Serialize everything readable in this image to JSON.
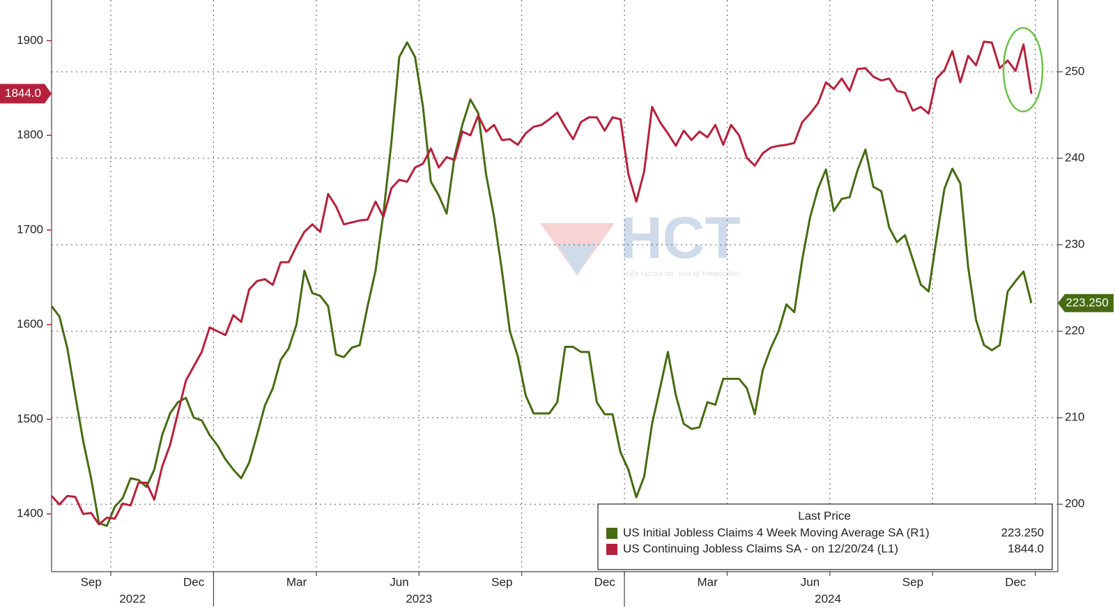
{
  "chart_data": {
    "type": "line",
    "watermark": {
      "logo": "HCT",
      "tagline": "KIẾN TẠO GIÁ TRỊ - CHIA SẺ THÀNH CÔNG"
    },
    "categories": [
      null,
      null,
      null,
      null,
      null,
      "Sep",
      null,
      null,
      null,
      null,
      null,
      null,
      null,
      null,
      null,
      null,
      null,
      null,
      "Dec",
      null,
      null,
      null,
      null,
      null,
      null,
      null,
      null,
      null,
      null,
      null,
      null,
      "Mar",
      null,
      null,
      null,
      null,
      null,
      null,
      null,
      null,
      null,
      null,
      null,
      null,
      "Jun",
      null,
      null,
      null,
      null,
      null,
      null,
      null,
      null,
      null,
      null,
      null,
      null,
      "Sep",
      null,
      null,
      null,
      null,
      null,
      null,
      null,
      null,
      null,
      null,
      null,
      null,
      "Dec",
      null,
      null,
      null,
      null,
      null,
      null,
      null,
      null,
      null,
      null,
      null,
      null,
      "Mar",
      null,
      null,
      null,
      null,
      null,
      null,
      null,
      null,
      null,
      null,
      null,
      null,
      "Jun",
      null,
      null,
      null,
      null,
      null,
      null,
      null,
      null,
      null,
      null,
      null,
      null,
      "Sep",
      null,
      null,
      null,
      null,
      null,
      null,
      null,
      null,
      null,
      null,
      null,
      null,
      "Dec",
      null,
      null
    ],
    "year_labels": [
      "2022",
      "2023",
      "2024"
    ],
    "legend_title": "Last Price",
    "series": [
      {
        "name": "US Initial Jobless Claims 4 Week Moving Average SA (R1)",
        "color": "#466b12",
        "axis": "y2",
        "values": [
          222.9,
          221.7,
          218,
          212.6,
          207.3,
          203,
          197.8,
          197.5,
          199.7,
          200.7,
          203,
          202.8,
          202,
          204,
          208,
          210.5,
          211.8,
          212.3,
          210,
          209.7,
          208,
          206.8,
          205.2,
          204,
          203,
          204.8,
          208,
          211.4,
          213.4,
          216.7,
          218,
          220.8,
          227,
          224.4,
          224.1,
          222.9,
          217.3,
          217,
          218.1,
          218.4,
          222.9,
          227,
          233.6,
          241.8,
          251.7,
          253.4,
          251.7,
          246,
          237.3,
          235.7,
          233.6,
          240.2,
          243.9,
          246.8,
          245.2,
          238.1,
          233.2,
          227,
          220,
          217.1,
          212.6,
          210.5,
          210.5,
          210.5,
          211.8,
          218.2,
          218.2,
          217.6,
          217.6,
          211.8,
          210.4,
          210.4,
          206,
          204,
          200.8,
          203.2,
          209.3,
          213.4,
          217.6,
          212.6,
          209.3,
          208.7,
          208.9,
          211.8,
          211.5,
          214.5,
          214.5,
          214.5,
          213.4,
          210.4,
          215.5,
          218,
          220,
          223.1,
          222.2,
          228.3,
          233.2,
          236.5,
          238.7,
          233.9,
          235.3,
          235.5,
          238.6,
          241,
          236.7,
          236.2,
          232,
          230.3,
          231.1,
          228.3,
          225.4,
          224.6,
          230.7,
          236.5,
          238.8,
          237.1,
          227.4,
          221.3,
          218.4,
          217.8,
          218.4,
          224.6,
          225.8,
          226.9,
          223.25
        ],
        "value_labels": [
          null,
          null,
          null,
          null,
          null,
          null,
          null,
          null,
          null,
          null,
          null,
          null,
          null,
          null,
          null,
          null,
          null,
          null,
          null,
          null,
          null,
          null,
          null,
          null,
          null,
          null,
          null,
          null,
          null,
          null,
          null,
          null,
          null,
          null,
          null,
          null,
          null,
          null,
          null,
          null,
          null,
          null,
          null,
          null,
          null,
          null,
          null,
          null,
          null,
          null,
          null,
          null,
          null,
          null,
          null,
          null,
          null,
          null,
          null,
          null,
          null,
          null,
          null,
          null,
          null,
          null,
          null,
          null,
          null,
          null,
          null,
          null,
          null,
          null,
          null,
          null,
          null,
          null,
          null,
          null,
          null,
          null,
          null,
          null,
          null,
          null,
          null,
          null,
          null,
          null,
          null,
          null,
          null,
          null,
          null,
          null,
          null,
          null,
          null,
          null,
          null,
          null,
          null,
          null,
          null,
          null,
          null,
          null,
          null,
          null,
          null,
          null,
          null,
          null,
          null,
          null,
          null,
          null,
          null,
          null,
          null,
          null,
          null,
          null,
          "223.250"
        ]
      },
      {
        "name": "US Continuing Jobless Claims SA - on 12/20/24 (L1)",
        "color": "#b5213c",
        "values": [
          1419,
          1410,
          1419,
          1418,
          1400,
          1401,
          1389,
          1396,
          1395,
          1411,
          1409,
          1433,
          1433,
          1415,
          1450,
          1473,
          1507,
          1541,
          1556,
          1571,
          1597,
          1593,
          1589,
          1610,
          1603,
          1637,
          1646,
          1648,
          1642,
          1666,
          1666,
          1683,
          1698,
          1706,
          1698,
          1738,
          1725,
          1706,
          1708,
          1710,
          1711,
          1730,
          1714,
          1744,
          1753,
          1751,
          1766,
          1770,
          1786,
          1766,
          1777,
          1774,
          1804,
          1800,
          1821,
          1804,
          1811,
          1795,
          1796,
          1790,
          1802,
          1809,
          1811,
          1817,
          1824,
          1809,
          1796,
          1814,
          1819,
          1819,
          1805,
          1819,
          1817,
          1759,
          1730,
          1762,
          1830,
          1814,
          1802,
          1789,
          1805,
          1795,
          1804,
          1798,
          1811,
          1790,
          1811,
          1800,
          1776,
          1768,
          1781,
          1787,
          1789,
          1790,
          1792,
          1814,
          1823,
          1834,
          1856,
          1849,
          1860,
          1847,
          1870,
          1871,
          1862,
          1858,
          1860,
          1847,
          1845,
          1826,
          1830,
          1823,
          1860,
          1869,
          1889,
          1856,
          1884,
          1874,
          1899,
          1898,
          1871,
          1879,
          1868,
          1896,
          1844
        ],
        "value_labels": [
          null,
          null,
          null,
          null,
          null,
          null,
          null,
          null,
          null,
          null,
          null,
          null,
          null,
          null,
          null,
          null,
          null,
          null,
          null,
          null,
          null,
          null,
          null,
          null,
          null,
          null,
          null,
          null,
          null,
          null,
          null,
          null,
          null,
          null,
          null,
          null,
          null,
          null,
          null,
          null,
          null,
          null,
          null,
          null,
          null,
          null,
          null,
          null,
          null,
          null,
          null,
          null,
          null,
          null,
          null,
          null,
          null,
          null,
          null,
          null,
          null,
          null,
          null,
          null,
          null,
          null,
          null,
          null,
          null,
          null,
          null,
          null,
          null,
          null,
          null,
          null,
          null,
          null,
          null,
          null,
          null,
          null,
          null,
          null,
          null,
          null,
          null,
          null,
          null,
          null,
          null,
          null,
          null,
          null,
          null,
          null,
          null,
          null,
          null,
          null,
          null,
          null,
          null,
          null,
          null,
          null,
          null,
          null,
          null,
          null,
          null,
          null,
          null,
          null,
          null,
          null,
          null,
          null,
          null,
          null,
          null,
          null,
          null,
          null,
          "1844.0"
        ]
      }
    ],
    "ylim": [
      1339,
      1943
    ],
    "yticks": [
      1400,
      1500,
      1600,
      1700,
      1800,
      1900
    ],
    "y2lim": [
      192.2,
      258.3
    ],
    "y2ticks": [
      200,
      210,
      220,
      230,
      240,
      250
    ],
    "grid": true,
    "legend": "lower right"
  }
}
